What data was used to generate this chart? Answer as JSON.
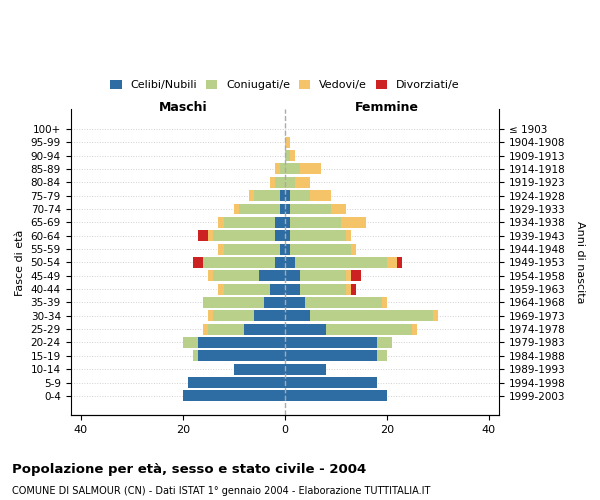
{
  "age_groups_bottom_to_top": [
    "0-4",
    "5-9",
    "10-14",
    "15-19",
    "20-24",
    "25-29",
    "30-34",
    "35-39",
    "40-44",
    "45-49",
    "50-54",
    "55-59",
    "60-64",
    "65-69",
    "70-74",
    "75-79",
    "80-84",
    "85-89",
    "90-94",
    "95-99",
    "100+"
  ],
  "birth_years_bottom_to_top": [
    "1999-2003",
    "1994-1998",
    "1989-1993",
    "1984-1988",
    "1979-1983",
    "1974-1978",
    "1969-1973",
    "1964-1968",
    "1959-1963",
    "1954-1958",
    "1949-1953",
    "1944-1948",
    "1939-1943",
    "1934-1938",
    "1929-1933",
    "1924-1928",
    "1919-1923",
    "1914-1918",
    "1909-1913",
    "1904-1908",
    "≤ 1903"
  ],
  "males_celibi": [
    20,
    19,
    10,
    17,
    17,
    8,
    6,
    4,
    3,
    5,
    2,
    1,
    2,
    2,
    1,
    1,
    0,
    0,
    0,
    0,
    0
  ],
  "males_coniugati": [
    0,
    0,
    0,
    1,
    3,
    7,
    8,
    12,
    9,
    9,
    14,
    11,
    12,
    10,
    8,
    5,
    2,
    1,
    0,
    0,
    0
  ],
  "males_vedovi": [
    0,
    0,
    0,
    0,
    0,
    1,
    1,
    0,
    1,
    1,
    0,
    1,
    1,
    1,
    1,
    1,
    1,
    1,
    0,
    0,
    0
  ],
  "males_divorziati": [
    0,
    0,
    0,
    0,
    0,
    0,
    0,
    0,
    0,
    0,
    2,
    0,
    2,
    0,
    0,
    0,
    0,
    0,
    0,
    0,
    0
  ],
  "females_nubili": [
    20,
    18,
    8,
    18,
    18,
    8,
    5,
    4,
    3,
    3,
    2,
    1,
    1,
    1,
    1,
    1,
    0,
    0,
    0,
    0,
    0
  ],
  "females_coniugate": [
    0,
    0,
    0,
    2,
    3,
    17,
    24,
    15,
    9,
    9,
    18,
    12,
    11,
    10,
    8,
    4,
    2,
    3,
    1,
    0,
    0
  ],
  "females_vedove": [
    0,
    0,
    0,
    0,
    0,
    1,
    1,
    1,
    1,
    1,
    2,
    1,
    1,
    5,
    3,
    4,
    3,
    4,
    1,
    1,
    0
  ],
  "females_divorziate": [
    0,
    0,
    0,
    0,
    0,
    0,
    0,
    0,
    1,
    2,
    1,
    0,
    0,
    0,
    0,
    0,
    0,
    0,
    0,
    0,
    0
  ],
  "color_celibi": "#2e6da4",
  "color_coniugati": "#b8d08a",
  "color_vedovi": "#f5c469",
  "color_divorziati": "#cc2222",
  "xlim": [
    -42,
    42
  ],
  "xticks": [
    -40,
    -20,
    0,
    20,
    40
  ],
  "xticklabels": [
    "40",
    "20",
    "0",
    "20",
    "40"
  ],
  "title": "Popolazione per età, sesso e stato civile - 2004",
  "subtitle": "COMUNE DI SALMOUR (CN) - Dati ISTAT 1° gennaio 2004 - Elaborazione TUTTITALIA.IT",
  "ylabel_left": "Fasce di età",
  "ylabel_right": "Anni di nascita",
  "label_maschi": "Maschi",
  "label_femmine": "Femmine",
  "legend_labels": [
    "Celibi/Nubili",
    "Coniugati/e",
    "Vedovi/e",
    "Divorziati/e"
  ],
  "bar_height": 0.82
}
